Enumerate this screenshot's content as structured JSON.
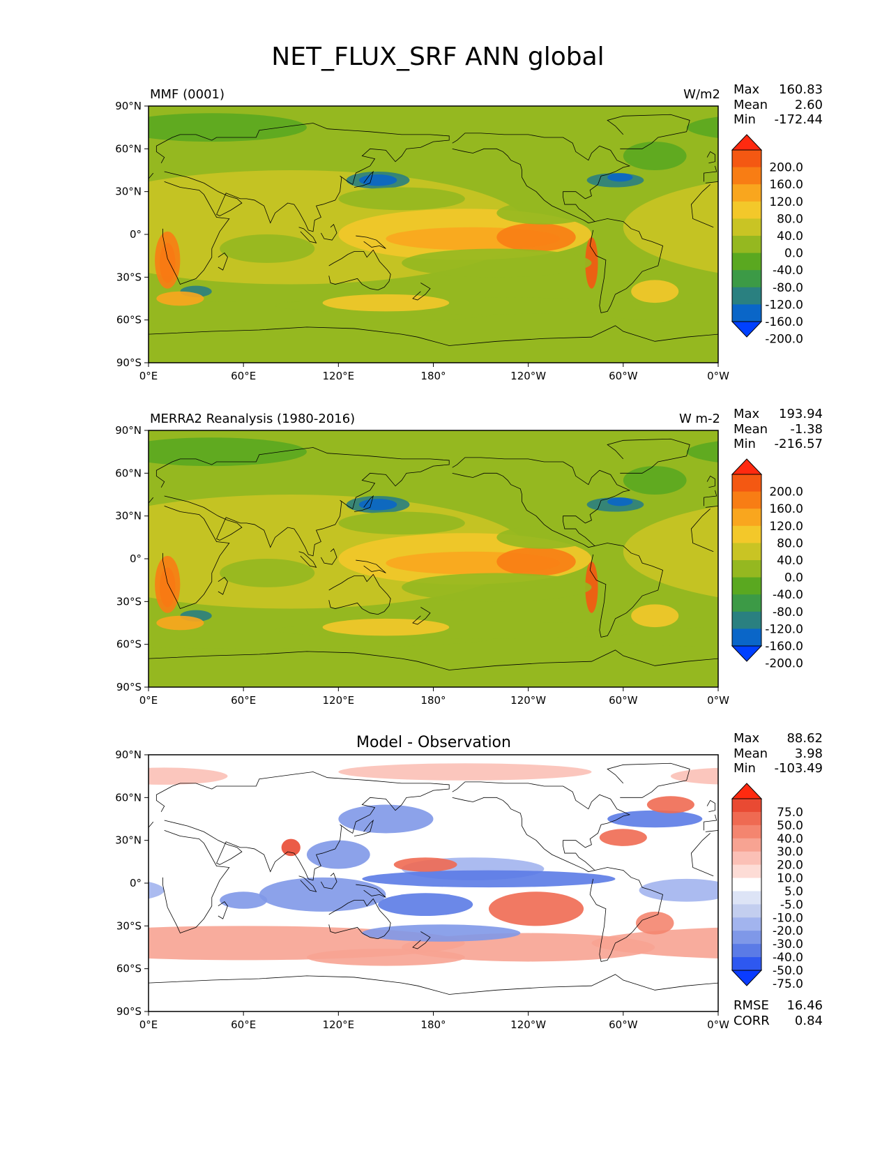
{
  "title": "NET_FLUX_SRF ANN global",
  "colors": {
    "abs": [
      "#0040ff",
      "#0a66c8",
      "#2a8080",
      "#3c9a46",
      "#5aa820",
      "#95b820",
      "#c9c424",
      "#f3c82a",
      "#f9a61e",
      "#f87d14",
      "#f45812",
      "#ff2a10"
    ],
    "diff": [
      "#0a3cff",
      "#2e58f0",
      "#5b7be6",
      "#7f98e8",
      "#a2b4ee",
      "#c3ceef",
      "#dde4f6",
      "#ffffff",
      "#fddcd6",
      "#fbc0b6",
      "#f7a392",
      "#f4856f",
      "#ef6a52",
      "#e94a33",
      "#ff2a10"
    ],
    "land_line": "#000000",
    "frame": "#000000"
  },
  "axes": {
    "lon_ticks": [
      "0°E",
      "60°E",
      "120°E",
      "180°",
      "120°W",
      "60°W",
      "0°W"
    ],
    "lat_ticks": [
      "90°N",
      "60°N",
      "30°N",
      "0°",
      "30°S",
      "60°S",
      "90°S"
    ]
  },
  "panels": [
    {
      "left_label": "MMF (0001)",
      "right_label": "W/m2",
      "center_label": "",
      "stats": [
        {
          "name": "Max",
          "value": "160.83"
        },
        {
          "name": "Mean",
          "value": "2.60"
        },
        {
          "name": "Min",
          "value": "-172.44"
        }
      ],
      "colorbar": [
        "200.0",
        "160.0",
        "120.0",
        "80.0",
        "40.0",
        "0.0",
        "-40.0",
        "-80.0",
        "-120.0",
        "-160.0",
        "-200.0"
      ],
      "palette": "abs"
    },
    {
      "left_label": "MERRA2 Reanalysis (1980-2016)",
      "right_label": "W m-2",
      "center_label": "",
      "stats": [
        {
          "name": "Max",
          "value": "193.94"
        },
        {
          "name": "Mean",
          "value": "-1.38"
        },
        {
          "name": "Min",
          "value": "-216.57"
        }
      ],
      "colorbar": [
        "200.0",
        "160.0",
        "120.0",
        "80.0",
        "40.0",
        "0.0",
        "-40.0",
        "-80.0",
        "-120.0",
        "-160.0",
        "-200.0"
      ],
      "palette": "abs"
    },
    {
      "left_label": "",
      "right_label": "",
      "center_label": "Model - Observation",
      "stats": [
        {
          "name": "Max",
          "value": "88.62"
        },
        {
          "name": "Mean",
          "value": "3.98"
        },
        {
          "name": "Min",
          "value": "-103.49"
        }
      ],
      "colorbar": [
        "75.0",
        "50.0",
        "40.0",
        "30.0",
        "20.0",
        "10.0",
        "5.0",
        "-5.0",
        "-10.0",
        "-20.0",
        "-30.0",
        "-40.0",
        "-50.0",
        "-75.0"
      ],
      "palette": "diff",
      "metrics": [
        {
          "name": "RMSE",
          "value": "16.46"
        },
        {
          "name": "CORR",
          "value": "0.84"
        }
      ]
    }
  ]
}
